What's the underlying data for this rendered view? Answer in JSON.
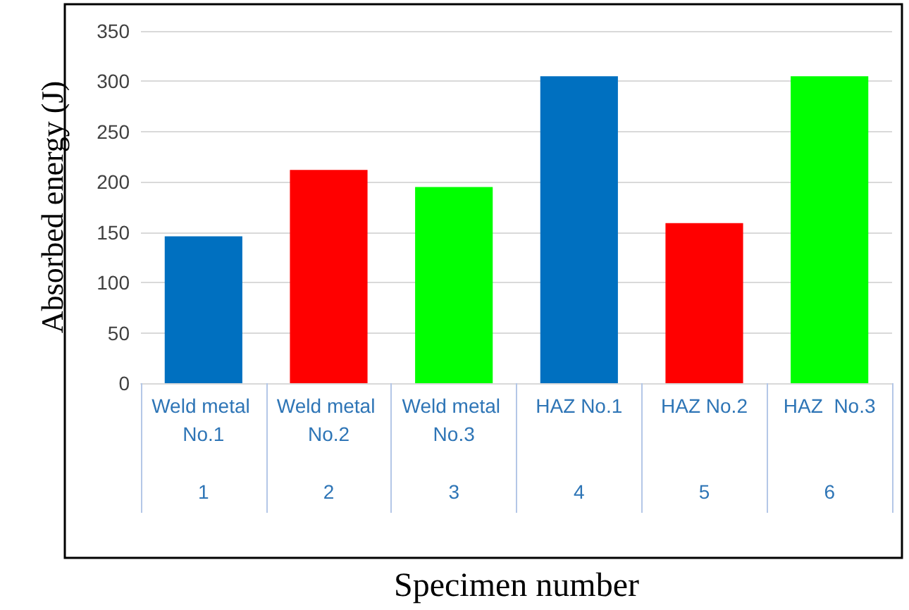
{
  "chart_data": {
    "type": "bar",
    "xlabel": "Specimen number",
    "ylabel": "Absorbed energy (J)",
    "categories": [
      "Weld metal No.1",
      "Weld metal No.2",
      "Weld metal No.3",
      "HAZ No.1",
      "HAZ No.2",
      "HAZ  No.3"
    ],
    "values": [
      146,
      212,
      195,
      305,
      159,
      305
    ],
    "colors": [
      "#0070c0",
      "#ff0000",
      "#00ff00",
      "#0070c0",
      "#ff0000",
      "#00ff00"
    ],
    "ylim": [
      0,
      350
    ],
    "yticks": [
      0,
      50,
      100,
      150,
      200,
      250,
      300,
      350
    ],
    "grid": "y",
    "annotations": [
      "1",
      "2",
      "3",
      "4",
      "5",
      "6"
    ]
  }
}
